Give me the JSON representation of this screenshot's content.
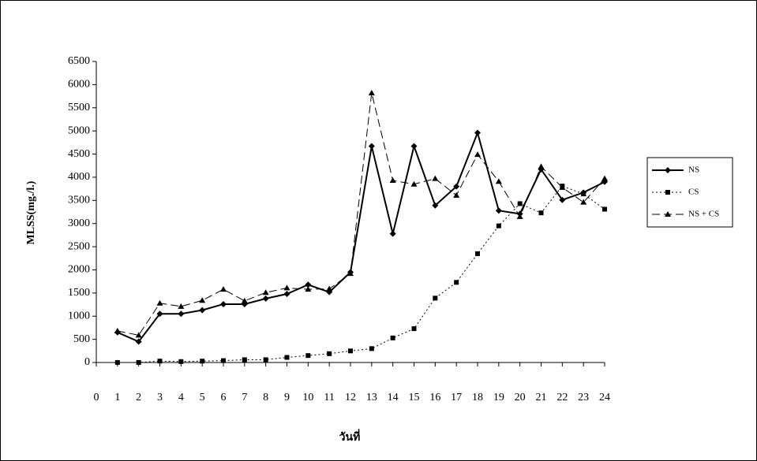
{
  "chart_data": {
    "type": "line",
    "x_label": "วันที่",
    "y_label": "MLSS(mg./l.)",
    "x": [
      1,
      2,
      3,
      4,
      5,
      6,
      7,
      8,
      9,
      10,
      11,
      12,
      13,
      14,
      15,
      16,
      17,
      18,
      19,
      20,
      21,
      22,
      23,
      24
    ],
    "series": [
      {
        "name": "NS",
        "color": "#000000",
        "line_style": "solid",
        "marker": "diamond",
        "values": [
          650,
          450,
          1050,
          1050,
          1130,
          1260,
          1260,
          1380,
          1480,
          1680,
          1520,
          1950,
          4670,
          2780,
          4670,
          3390,
          3800,
          4960,
          3280,
          3210,
          4170,
          3510,
          3670,
          3900
        ]
      },
      {
        "name": "CS",
        "color": "#000000",
        "line_style": "dotted",
        "marker": "square",
        "values": [
          0,
          0,
          30,
          20,
          30,
          40,
          60,
          60,
          110,
          150,
          190,
          250,
          300,
          530,
          730,
          1390,
          1730,
          2350,
          2950,
          3430,
          3230,
          3810,
          3640,
          3310
        ]
      },
      {
        "name": "NS + CS",
        "color": "#000000",
        "line_style": "dashed",
        "marker": "triangle",
        "values": [
          680,
          590,
          1280,
          1210,
          1340,
          1580,
          1330,
          1510,
          1610,
          1580,
          1590,
          1920,
          5820,
          3930,
          3850,
          3970,
          3610,
          4490,
          3910,
          3150,
          4230,
          3780,
          3460,
          3970
        ]
      }
    ],
    "xlim": [
      0,
      24
    ],
    "xticks": [
      0,
      1,
      2,
      3,
      4,
      5,
      6,
      7,
      8,
      9,
      10,
      11,
      12,
      13,
      14,
      15,
      16,
      17,
      18,
      19,
      20,
      21,
      22,
      23,
      24
    ],
    "ylim": [
      0,
      6500
    ],
    "yticks": [
      0,
      500,
      1000,
      1500,
      2000,
      2500,
      3000,
      3500,
      4000,
      4500,
      5000,
      5500,
      6000,
      6500
    ],
    "legend_position": "right"
  }
}
